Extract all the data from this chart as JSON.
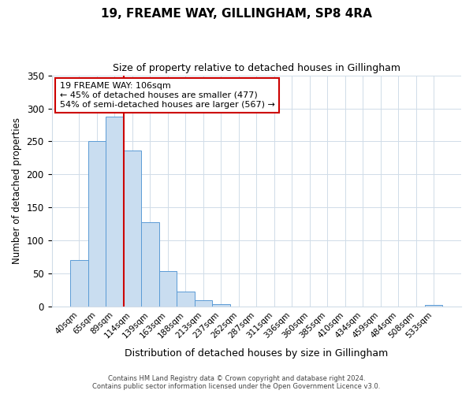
{
  "title": "19, FREAME WAY, GILLINGHAM, SP8 4RA",
  "subtitle": "Size of property relative to detached houses in Gillingham",
  "xlabel": "Distribution of detached houses by size in Gillingham",
  "ylabel": "Number of detached properties",
  "bar_labels": [
    "40sqm",
    "65sqm",
    "89sqm",
    "114sqm",
    "139sqm",
    "163sqm",
    "188sqm",
    "213sqm",
    "237sqm",
    "262sqm",
    "287sqm",
    "311sqm",
    "336sqm",
    "360sqm",
    "385sqm",
    "410sqm",
    "434sqm",
    "459sqm",
    "484sqm",
    "508sqm",
    "533sqm"
  ],
  "bar_values": [
    70,
    250,
    287,
    236,
    128,
    54,
    23,
    10,
    4,
    0,
    0,
    0,
    0,
    0,
    0,
    0,
    0,
    0,
    0,
    0,
    2
  ],
  "bar_color": "#c9ddf0",
  "bar_edge_color": "#5b9bd5",
  "vline_color": "#cc0000",
  "annotation_text": "19 FREAME WAY: 106sqm\n← 45% of detached houses are smaller (477)\n54% of semi-detached houses are larger (567) →",
  "annotation_box_color": "#ffffff",
  "annotation_box_edge": "#cc0000",
  "ylim": [
    0,
    350
  ],
  "yticks": [
    0,
    50,
    100,
    150,
    200,
    250,
    300,
    350
  ],
  "footer_line1": "Contains HM Land Registry data © Crown copyright and database right 2024.",
  "footer_line2": "Contains public sector information licensed under the Open Government Licence v3.0.",
  "bg_color": "#ffffff",
  "grid_color": "#d0dce8"
}
